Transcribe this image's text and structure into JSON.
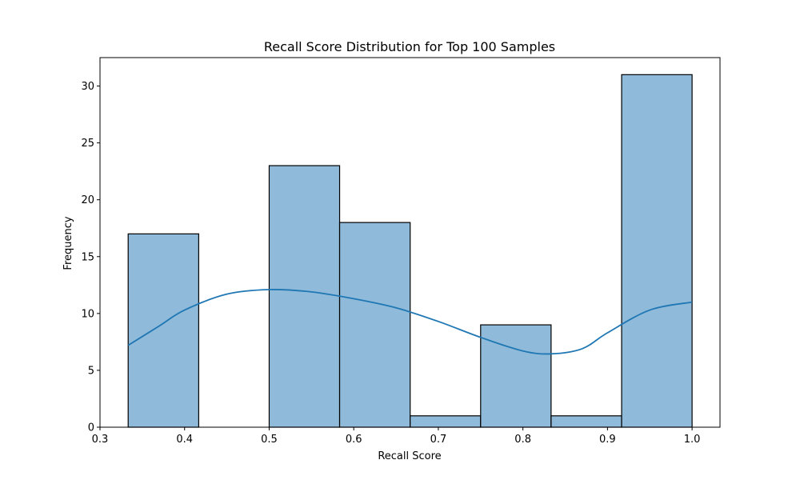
{
  "chart_data": {
    "type": "bar",
    "title": "Recall Score Distribution for Top 100 Samples",
    "xlabel": "Recall Score",
    "ylabel": "Frequency",
    "xlim": [
      0.3,
      1.033
    ],
    "ylim": [
      0,
      32.5
    ],
    "x_ticks": [
      "0.3",
      "0.4",
      "0.5",
      "0.6",
      "0.7",
      "0.8",
      "0.9",
      "1.0"
    ],
    "y_ticks": [
      "0",
      "5",
      "10",
      "15",
      "20",
      "25",
      "30"
    ],
    "bins": [
      {
        "x0": 0.3333,
        "x1": 0.4167,
        "count": 17
      },
      {
        "x0": 0.4167,
        "x1": 0.5,
        "count": 0
      },
      {
        "x0": 0.5,
        "x1": 0.5833,
        "count": 23
      },
      {
        "x0": 0.5833,
        "x1": 0.6667,
        "count": 18
      },
      {
        "x0": 0.6667,
        "x1": 0.75,
        "count": 1
      },
      {
        "x0": 0.75,
        "x1": 0.8333,
        "count": 9
      },
      {
        "x0": 0.8333,
        "x1": 0.9167,
        "count": 1
      },
      {
        "x0": 0.9167,
        "x1": 1.0,
        "count": 31
      }
    ],
    "kde": {
      "x": [
        0.3333,
        0.37,
        0.4,
        0.45,
        0.5,
        0.55,
        0.6,
        0.65,
        0.7,
        0.75,
        0.8,
        0.8333,
        0.87,
        0.9,
        0.95,
        1.0
      ],
      "y": [
        7.2,
        8.9,
        10.3,
        11.7,
        12.1,
        11.9,
        11.3,
        10.5,
        9.3,
        7.9,
        6.7,
        6.45,
        6.9,
        8.3,
        10.3,
        11.0
      ]
    },
    "grid": false,
    "colors": {
      "bar_fill": "#8fbad9",
      "bar_edge": "#000000",
      "kde_line": "#1f77b4"
    }
  }
}
